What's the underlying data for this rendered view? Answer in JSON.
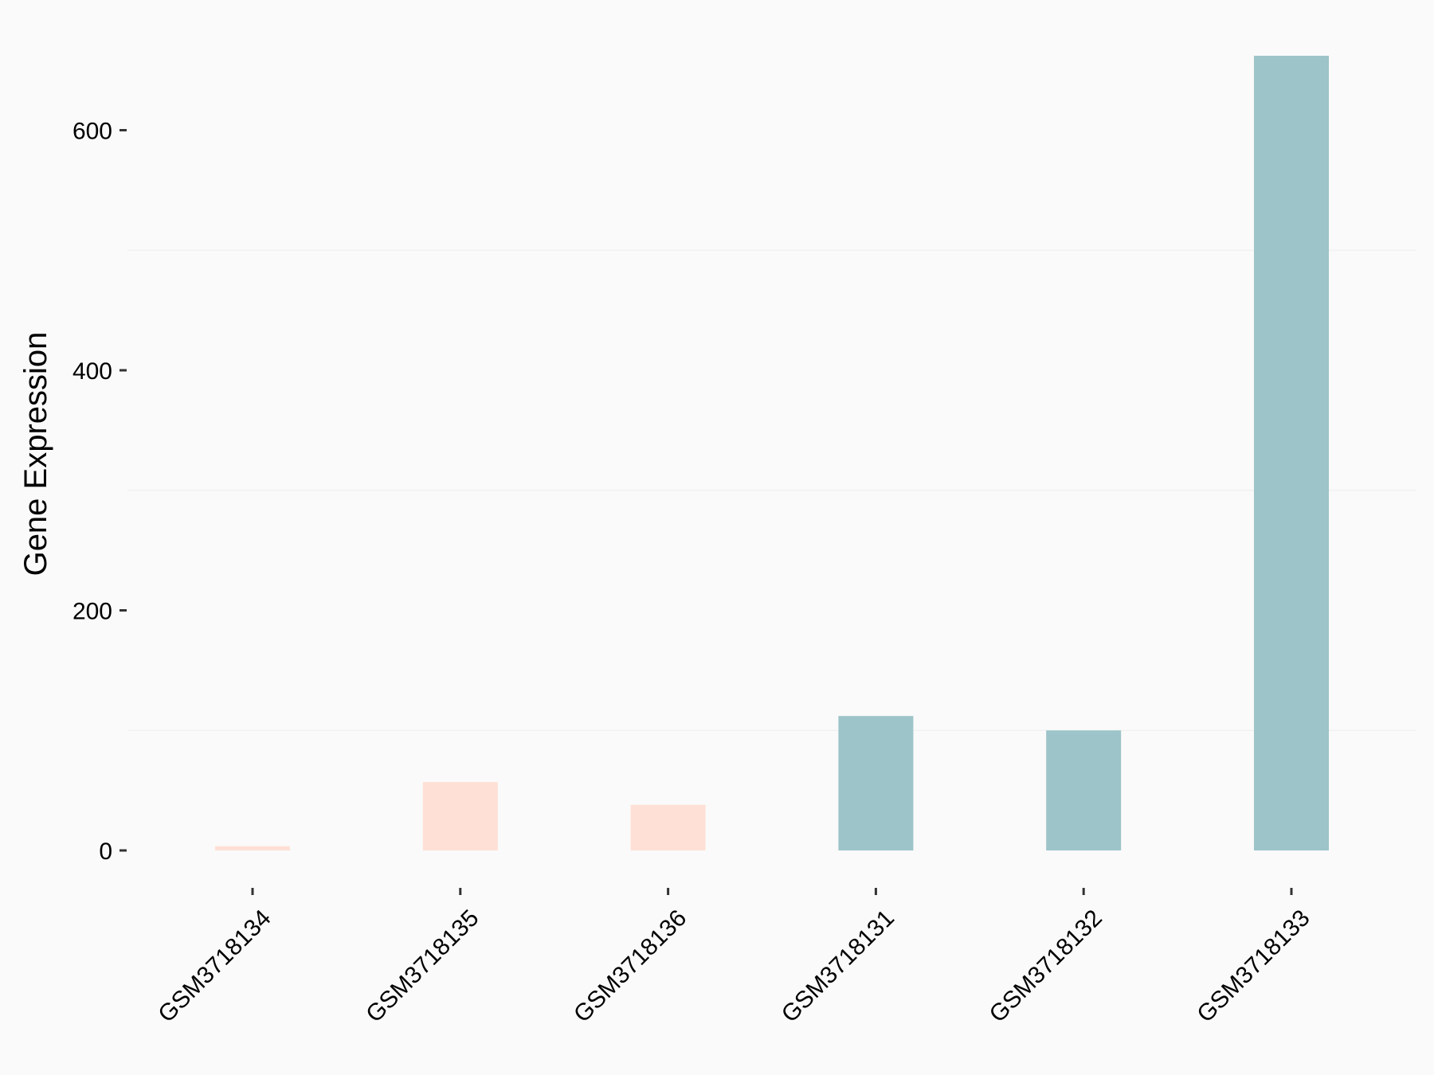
{
  "chart_data": {
    "type": "bar",
    "title": "",
    "xlabel": "",
    "ylabel": "Gene Expression",
    "categories": [
      "GSM3718134",
      "GSM3718135",
      "GSM3718136",
      "GSM3718131",
      "GSM3718132",
      "GSM3718133"
    ],
    "values": [
      3.5,
      57,
      38,
      112,
      100,
      662
    ],
    "bar_colors": [
      "#ffe0d6",
      "#ffe0d6",
      "#ffe0d6",
      "#9dc4c8",
      "#9dc4c8",
      "#9dc4c8"
    ],
    "ylim": [
      -30,
      700
    ],
    "yticks": [
      0,
      200,
      400,
      600
    ],
    "ytick_labels": [
      "0",
      "200",
      "400",
      "600"
    ],
    "minor_gridlines": [
      100,
      300,
      500
    ],
    "grid": "horizontal-minor-faint",
    "legend": "none",
    "background": "#fafafa"
  }
}
